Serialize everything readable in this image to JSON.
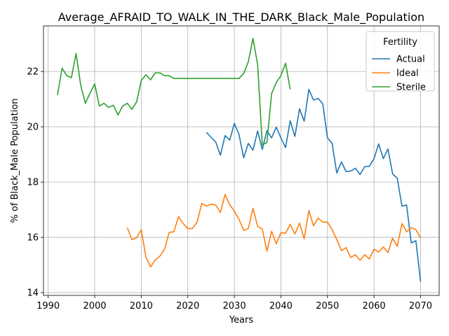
{
  "chart_data": {
    "type": "line",
    "title": "Average_AFRAID_TO_WALK_IN_THE_DARK_Black_Male_Population",
    "xlabel": "Years",
    "ylabel": "% of Black_Male Population",
    "xlim": [
      1989,
      2074
    ],
    "ylim": [
      13.9,
      23.65
    ],
    "xticks": [
      1990,
      2000,
      2010,
      2020,
      2030,
      2040,
      2050,
      2060,
      2070
    ],
    "yticks": [
      14,
      16,
      18,
      20,
      22
    ],
    "grid": true,
    "legend": {
      "title": "Fertility",
      "position": "top-right"
    },
    "series": [
      {
        "name": "Actual",
        "color": "#1f77b4",
        "x": [
          2024,
          2025,
          2026,
          2027,
          2028,
          2029,
          2030,
          2031,
          2032,
          2033,
          2034,
          2035,
          2036,
          2037,
          2038,
          2039,
          2040,
          2041,
          2042,
          2043,
          2044,
          2045,
          2046,
          2047,
          2048,
          2049,
          2050,
          2051,
          2052,
          2053,
          2054,
          2055,
          2056,
          2057,
          2058,
          2059,
          2060,
          2061,
          2062,
          2063,
          2064,
          2065,
          2066,
          2067,
          2068,
          2069,
          2070
        ],
        "y": [
          19.8,
          19.62,
          19.45,
          18.97,
          19.68,
          19.52,
          20.12,
          19.72,
          18.88,
          19.4,
          19.15,
          19.85,
          19.18,
          19.86,
          19.6,
          19.99,
          19.6,
          19.25,
          20.22,
          19.65,
          20.65,
          20.2,
          21.35,
          20.97,
          21.03,
          20.83,
          19.6,
          19.4,
          18.33,
          18.73,
          18.38,
          18.4,
          18.5,
          18.27,
          18.56,
          18.57,
          18.85,
          19.38,
          18.85,
          19.2,
          18.29,
          18.14,
          17.13,
          17.17,
          15.8,
          15.88,
          14.4
        ]
      },
      {
        "name": "Ideal",
        "color": "#ff7f0e",
        "x": [
          2007,
          2008,
          2009,
          2010,
          2011,
          2012,
          2013,
          2014,
          2015,
          2016,
          2017,
          2018,
          2019,
          2020,
          2021,
          2022,
          2023,
          2024,
          2025,
          2026,
          2027,
          2028,
          2029,
          2030,
          2031,
          2032,
          2033,
          2034,
          2035,
          2036,
          2037,
          2038,
          2039,
          2040,
          2041,
          2042,
          2043,
          2044,
          2045,
          2046,
          2047,
          2048,
          2049,
          2050,
          2051,
          2052,
          2053,
          2054,
          2055,
          2056,
          2057,
          2058,
          2059,
          2060,
          2061,
          2062,
          2063,
          2064,
          2065,
          2066,
          2067,
          2068,
          2069,
          2070
        ],
        "y": [
          16.35,
          15.92,
          15.98,
          16.28,
          15.28,
          14.93,
          15.18,
          15.32,
          15.57,
          16.18,
          16.2,
          16.75,
          16.5,
          16.32,
          16.32,
          16.55,
          17.23,
          17.13,
          17.2,
          17.17,
          16.9,
          17.55,
          17.18,
          16.95,
          16.65,
          16.25,
          16.32,
          17.05,
          16.4,
          16.3,
          15.5,
          16.22,
          15.77,
          16.17,
          16.15,
          16.47,
          16.12,
          16.52,
          15.95,
          16.97,
          16.42,
          16.7,
          16.55,
          16.55,
          16.28,
          15.92,
          15.52,
          15.63,
          15.27,
          15.37,
          15.17,
          15.37,
          15.22,
          15.57,
          15.47,
          15.65,
          15.45,
          15.97,
          15.67,
          16.5,
          16.2,
          16.35,
          16.28,
          15.97
        ]
      },
      {
        "name": "Sterile",
        "color": "#2ca02c",
        "x": [
          1992,
          1993,
          1994,
          1995,
          1996,
          1997,
          1998,
          1999,
          2000,
          2001,
          2002,
          2003,
          2004,
          2005,
          2006,
          2007,
          2008,
          2009,
          2010,
          2011,
          2012,
          2013,
          2014,
          2015,
          2016,
          2017,
          2018,
          2019,
          2020,
          2021,
          2022,
          2023,
          2024,
          2025,
          2026,
          2027,
          2028,
          2029,
          2030,
          2031,
          2032,
          2033,
          2034,
          2035,
          2036,
          2037,
          2038,
          2039,
          2040,
          2041,
          2042
        ],
        "y": [
          21.15,
          22.12,
          21.85,
          21.78,
          22.65,
          21.5,
          20.85,
          21.22,
          21.55,
          20.75,
          20.85,
          20.7,
          20.78,
          20.43,
          20.75,
          20.85,
          20.63,
          20.9,
          21.67,
          21.88,
          21.7,
          21.95,
          21.95,
          21.85,
          21.85,
          21.75,
          21.75,
          21.75,
          21.75,
          21.75,
          21.75,
          21.75,
          21.75,
          21.75,
          21.75,
          21.75,
          21.75,
          21.75,
          21.75,
          21.75,
          21.93,
          22.35,
          23.2,
          22.25,
          19.35,
          19.43,
          21.2,
          21.6,
          21.85,
          22.3,
          21.35
        ]
      }
    ]
  }
}
